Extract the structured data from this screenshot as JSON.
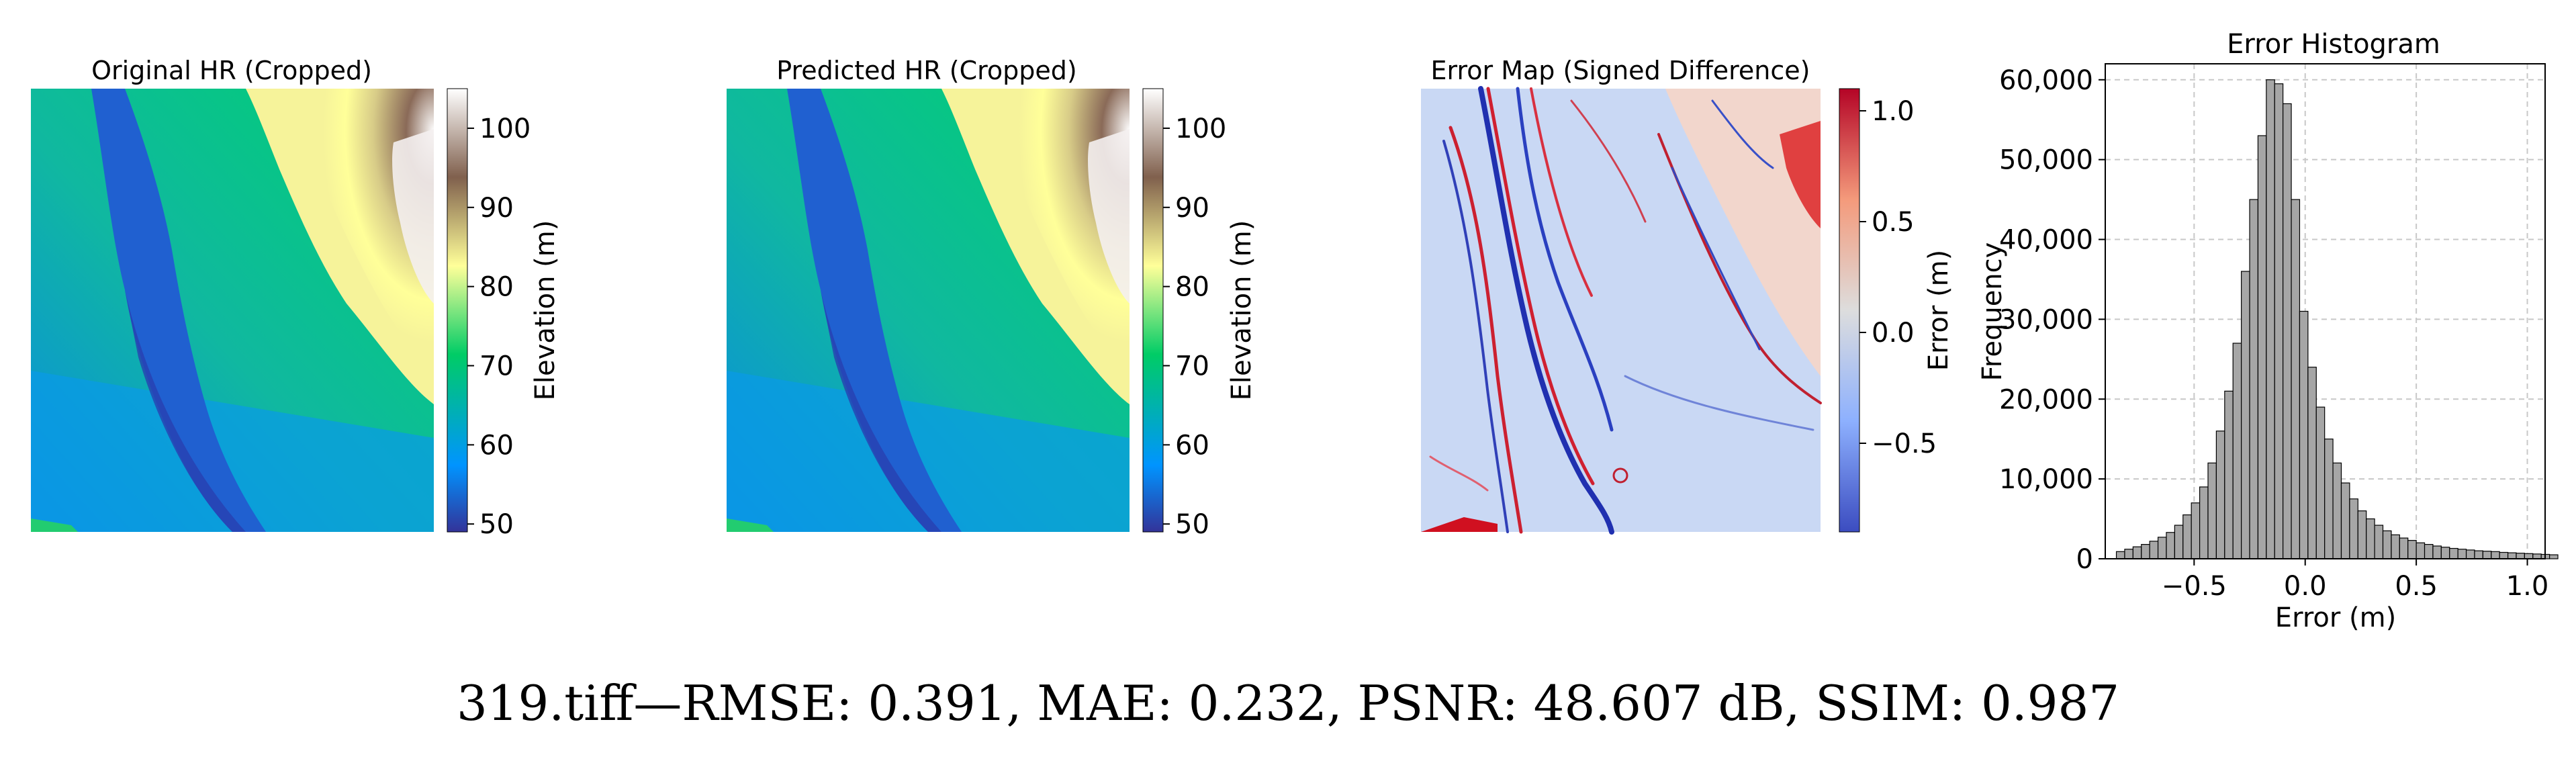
{
  "panels": {
    "original": {
      "title": "Original HR (Cropped)"
    },
    "predicted": {
      "title": "Predicted HR (Cropped)"
    },
    "error_map": {
      "title": "Error Map (Signed Difference)"
    }
  },
  "colorbars": {
    "elevation": {
      "label": "Elevation (m)",
      "ticks": [
        "100",
        "90",
        "80",
        "70",
        "60",
        "50"
      ],
      "range": [
        49,
        105
      ],
      "colormap": "terrain"
    },
    "error": {
      "label": "Error (m)",
      "ticks": [
        "1.0",
        "0.5",
        "0.0",
        "−0.5"
      ],
      "range": [
        -0.9,
        1.1
      ],
      "colormap": "coolwarm"
    }
  },
  "colors": {
    "terrain": [
      "#333399",
      "#0094ff",
      "#00cc66",
      "#ffff99",
      "#80604d",
      "#ffffff"
    ],
    "coolwarm": [
      "#3b4cc0",
      "#dddddd",
      "#b40426"
    ],
    "histogram_bar": "#a6a6a6"
  },
  "chart_data": {
    "type": "bar",
    "title": "Error Histogram",
    "xlabel": "Error (m)",
    "ylabel": "Frequency",
    "xlim": [
      -0.9,
      1.08
    ],
    "ylim": [
      0,
      62000
    ],
    "x_ticks": [
      "−0.5",
      "0.0",
      "0.5",
      "1.0"
    ],
    "y_ticks": [
      "0",
      "10,000",
      "20,000",
      "30,000",
      "40,000",
      "50,000",
      "60,000"
    ],
    "grid": true,
    "bin_start": -0.85,
    "bin_width": 0.0375,
    "values": [
      900,
      1200,
      1500,
      1800,
      2200,
      2700,
      3300,
      4200,
      5500,
      7000,
      9000,
      12000,
      16000,
      21000,
      27000,
      36000,
      45000,
      53000,
      60000,
      59500,
      57000,
      45000,
      31000,
      24000,
      19000,
      15000,
      12000,
      9500,
      7500,
      6000,
      5000,
      4200,
      3500,
      3000,
      2600,
      2300,
      2000,
      1800,
      1600,
      1450,
      1300,
      1200,
      1100,
      1000,
      950,
      900,
      800,
      750,
      700,
      650,
      600,
      550,
      500
    ]
  },
  "caption": "319.tiff—RMSE: 0.391, MAE: 0.232, PSNR: 48.607 dB, SSIM: 0.987"
}
